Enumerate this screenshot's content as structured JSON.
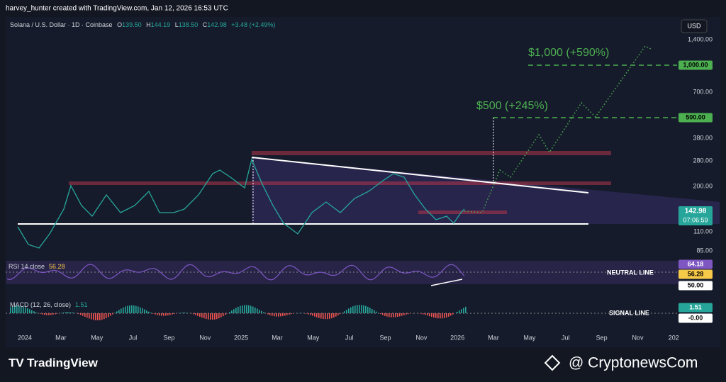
{
  "header": {
    "title": "harvey_hunter created with TradingView.com, Jan 12, 2026 16:53 UTC"
  },
  "legend": {
    "symbol": "Solana / U.S. Dollar · 1D · Coinbase",
    "open_label": "O",
    "open": "139.50",
    "high_label": "H",
    "high": "144.19",
    "low_label": "L",
    "low": "138.50",
    "close_label": "C",
    "close": "142.98",
    "change": "+3.48 (+2.49%)"
  },
  "currency": "USD",
  "price_axis": [
    "1,400.00",
    "700.00",
    "380.00",
    "280.00",
    "200.00",
    "110.00",
    "85.00"
  ],
  "price_badges": {
    "target_1000": "1,000.00",
    "target_500": "500.00",
    "last_price": "142.98",
    "countdown": "07:06:59"
  },
  "annotations": {
    "target_1000": "$1,000 (+590%)",
    "target_500": "$500 (+245%)",
    "neutral_line": "NEUTRAL LINE",
    "signal_line": "SIGNAL LINE"
  },
  "rsi": {
    "label": "RSI 14 close",
    "value": "56.28",
    "badges": [
      "64.18",
      "56.28",
      "50.00"
    ]
  },
  "macd": {
    "label": "MACD (12, 26, close)",
    "value": "1.51",
    "badges": [
      "1.51",
      "-0.00"
    ]
  },
  "time_axis": [
    "2024",
    "Mar",
    "May",
    "Jul",
    "Sep",
    "Nov",
    "2025",
    "Mar",
    "May",
    "Jul",
    "Sep",
    "Nov",
    "2026",
    "Mar",
    "May",
    "Jul",
    "Sep",
    "Nov",
    "202"
  ],
  "footer": {
    "brand": "TradingView",
    "watermark": "@ CryptonewsCom"
  }
}
